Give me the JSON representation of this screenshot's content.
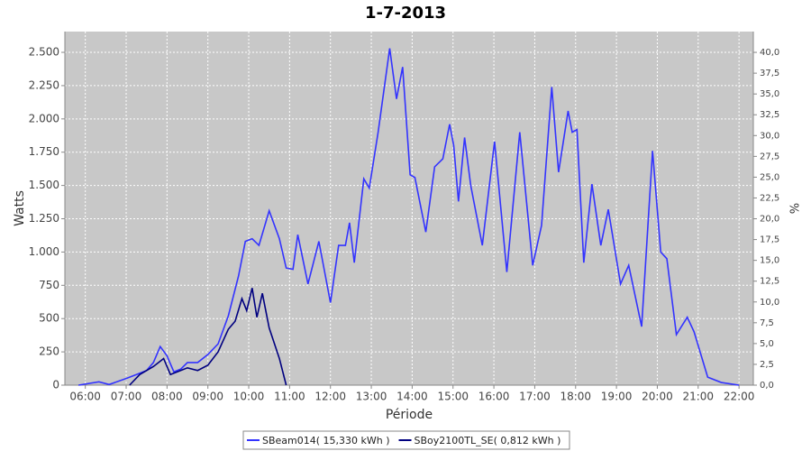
{
  "chart_data": {
    "type": "line",
    "title": "1-7-2013",
    "x_label": "Période",
    "y_label": "Watts",
    "y2_label": "%",
    "xlim": [
      "05:30",
      "22:21"
    ],
    "xticks": [
      "06:00",
      "07:00",
      "08:00",
      "09:00",
      "10:00",
      "11:00",
      "12:00",
      "13:00",
      "14:00",
      "15:00",
      "16:00",
      "17:00",
      "18:00",
      "19:00",
      "20:00",
      "21:00",
      "22:00"
    ],
    "ylim": [
      0,
      2656
    ],
    "yticks": [
      0,
      250,
      500,
      750,
      {
        "value": 1000,
        "label": "1.000"
      },
      {
        "value": 1250,
        "label": "1.250"
      },
      {
        "value": 1500,
        "label": "1.500"
      },
      {
        "value": 1750,
        "label": "1.750"
      },
      {
        "value": 2000,
        "label": "2.000"
      },
      {
        "value": 2250,
        "label": "2.250"
      },
      {
        "value": 2500,
        "label": "2.500"
      }
    ],
    "y2lim": [
      0,
      42.5
    ],
    "y2ticks": [
      {
        "value": 0,
        "label": "0,0"
      },
      {
        "value": 2.5,
        "label": "2,5"
      },
      {
        "value": 5,
        "label": "5,0"
      },
      {
        "value": 7.5,
        "label": "7,5"
      },
      {
        "value": 10,
        "label": "10,0"
      },
      {
        "value": 12.5,
        "label": "12,5"
      },
      {
        "value": 15,
        "label": "15,0"
      },
      {
        "value": 17.5,
        "label": "17,5"
      },
      {
        "value": 20,
        "label": "20,0"
      },
      {
        "value": 22.5,
        "label": "22,5"
      },
      {
        "value": 25,
        "label": "25,0"
      },
      {
        "value": 27.5,
        "label": "27,5"
      },
      {
        "value": 30,
        "label": "30,0"
      },
      {
        "value": 32.5,
        "label": "32,5"
      },
      {
        "value": 35,
        "label": "35,0"
      },
      {
        "value": 37.5,
        "label": "37,5"
      },
      {
        "value": 40,
        "label": "40,0"
      }
    ],
    "grid": true,
    "legend": "bottom",
    "series": [
      {
        "name": "SBeam014( 15,330 kWh )",
        "color": "#3333ff",
        "x": [
          "05:50",
          "06:20",
          "06:35",
          "07:00",
          "07:15",
          "07:30",
          "07:40",
          "07:50",
          "08:00",
          "08:10",
          "08:20",
          "08:30",
          "08:45",
          "09:00",
          "09:15",
          "09:30",
          "09:45",
          "09:55",
          "10:05",
          "10:15",
          "10:30",
          "10:45",
          "10:55",
          "11:05",
          "11:12",
          "11:27",
          "11:43",
          "12:00",
          "12:12",
          "12:22",
          "12:28",
          "12:35",
          "12:49",
          "12:57",
          "13:10",
          "13:27",
          "13:37",
          "13:46",
          "13:57",
          "14:04",
          "14:20",
          "14:33",
          "14:45",
          "14:55",
          "15:01",
          "15:08",
          "15:17",
          "15:26",
          "15:43",
          "16:01",
          "16:19",
          "16:38",
          "16:57",
          "17:10",
          "17:25",
          "17:35",
          "17:49",
          "17:55",
          "18:02",
          "18:12",
          "18:24",
          "18:37",
          "18:48",
          "19:06",
          "19:18",
          "19:37",
          "19:53",
          "20:05",
          "20:14",
          "20:28",
          "20:44",
          "20:54",
          "21:14",
          "21:34",
          "22:00"
        ],
        "values": [
          0,
          25,
          5,
          50,
          80,
          110,
          170,
          290,
          220,
          100,
          120,
          170,
          170,
          230,
          310,
          520,
          820,
          1080,
          1100,
          1050,
          1310,
          1100,
          880,
          870,
          1130,
          760,
          1080,
          620,
          1050,
          1050,
          1220,
          920,
          1550,
          1480,
          1900,
          2530,
          2150,
          2390,
          1580,
          1560,
          1150,
          1640,
          1700,
          1960,
          1800,
          1380,
          1860,
          1500,
          1050,
          1830,
          850,
          1900,
          900,
          1200,
          2240,
          1600,
          2060,
          1900,
          1920,
          920,
          1510,
          1050,
          1320,
          760,
          900,
          440,
          1760,
          1000,
          950,
          380,
          510,
          400,
          60,
          20,
          0
        ]
      },
      {
        "name": "SBoy2100TL_SE( 0,812 kWh )",
        "color": "#000080",
        "x": [
          "07:05",
          "07:20",
          "07:40",
          "07:55",
          "08:05",
          "08:15",
          "08:30",
          "08:45",
          "09:00",
          "09:15",
          "09:30",
          "09:40",
          "09:50",
          "09:57",
          "10:05",
          "10:12",
          "10:20",
          "10:30",
          "10:45",
          "10:55"
        ],
        "values": [
          0,
          80,
          140,
          200,
          80,
          100,
          130,
          110,
          150,
          250,
          420,
          480,
          650,
          560,
          730,
          510,
          690,
          430,
          200,
          0
        ]
      }
    ]
  }
}
